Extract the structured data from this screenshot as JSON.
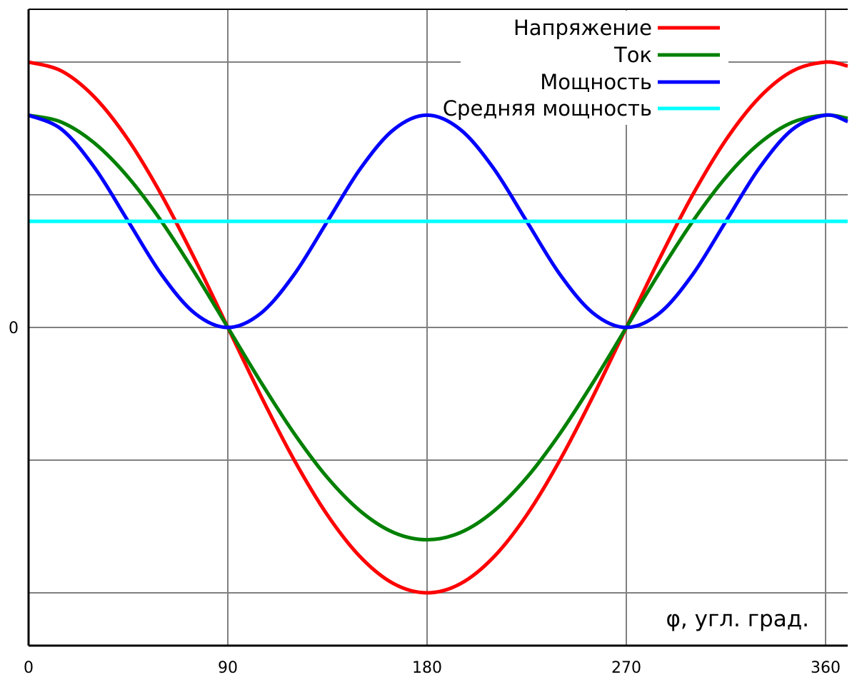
{
  "chart_data": {
    "type": "line",
    "xlabel": "φ, угл. град.",
    "ylabel": "",
    "xlim": [
      0,
      370
    ],
    "ylim": [
      -1.2,
      1.2
    ],
    "x_ticks": [
      0,
      90,
      180,
      270,
      360
    ],
    "y_ticks": [
      0
    ],
    "y_gridlines": [
      -1.0,
      -0.5,
      0,
      0.5,
      1.0
    ],
    "grid": true,
    "legend_position": "top-right",
    "series": [
      {
        "name": "Напряжение",
        "color": "#ff0000",
        "x": [
          0,
          15,
          30,
          45,
          60,
          75,
          90,
          105,
          120,
          135,
          150,
          165,
          180,
          195,
          210,
          225,
          240,
          255,
          270,
          285,
          300,
          315,
          330,
          345,
          360,
          370
        ],
        "values": [
          1.0,
          0.966,
          0.866,
          0.707,
          0.5,
          0.259,
          0.0,
          -0.259,
          -0.5,
          -0.707,
          -0.866,
          -0.966,
          -1.0,
          -0.966,
          -0.866,
          -0.707,
          -0.5,
          -0.259,
          0.0,
          0.259,
          0.5,
          0.707,
          0.866,
          0.966,
          1.0,
          0.985
        ]
      },
      {
        "name": "Ток",
        "color": "#008000",
        "x": [
          0,
          15,
          30,
          45,
          60,
          75,
          90,
          105,
          120,
          135,
          150,
          165,
          180,
          195,
          210,
          225,
          240,
          255,
          270,
          285,
          300,
          315,
          330,
          345,
          360,
          370
        ],
        "values": [
          0.8,
          0.773,
          0.693,
          0.566,
          0.4,
          0.207,
          0.0,
          -0.207,
          -0.4,
          -0.566,
          -0.693,
          -0.773,
          -0.8,
          -0.773,
          -0.693,
          -0.566,
          -0.4,
          -0.207,
          0.0,
          0.207,
          0.4,
          0.566,
          0.693,
          0.773,
          0.8,
          0.788
        ]
      },
      {
        "name": "Мощность",
        "color": "#0000ff",
        "x": [
          0,
          15,
          30,
          45,
          60,
          75,
          90,
          105,
          120,
          135,
          150,
          165,
          180,
          195,
          210,
          225,
          240,
          255,
          270,
          285,
          300,
          315,
          330,
          345,
          360,
          370
        ],
        "values": [
          0.8,
          0.746,
          0.6,
          0.4,
          0.2,
          0.054,
          0.0,
          0.054,
          0.2,
          0.4,
          0.6,
          0.746,
          0.8,
          0.746,
          0.6,
          0.4,
          0.2,
          0.054,
          0.0,
          0.054,
          0.2,
          0.4,
          0.6,
          0.746,
          0.8,
          0.776
        ]
      },
      {
        "name": "Средняя мощность",
        "color": "#00ffff",
        "x": [
          0,
          370
        ],
        "values": [
          0.4,
          0.4
        ]
      }
    ]
  }
}
